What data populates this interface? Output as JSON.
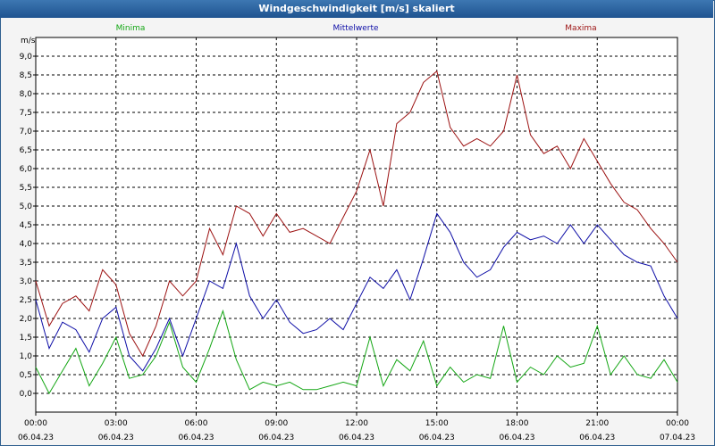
{
  "window": {
    "title": "Windgeschwindigkeit [m/s] skaliert"
  },
  "chart_data": {
    "type": "line",
    "title": "Windgeschwindigkeit [m/s] skaliert",
    "ylabel": "m/s",
    "ylim": [
      -0.5,
      9.5
    ],
    "xlim": [
      0,
      24
    ],
    "grid": true,
    "yticks": [
      "0,0",
      "0,5",
      "1,0",
      "1,5",
      "2,0",
      "2,5",
      "3,0",
      "3,5",
      "4,0",
      "4,5",
      "5,0",
      "5,5",
      "6,0",
      "6,5",
      "7,0",
      "7,5",
      "8,0",
      "8,5",
      "9,0"
    ],
    "xticks": [
      {
        "time": "00:00",
        "date": "06.04.23"
      },
      {
        "time": "03:00",
        "date": "06.04.23"
      },
      {
        "time": "06:00",
        "date": "06.04.23"
      },
      {
        "time": "09:00",
        "date": "06.04.23"
      },
      {
        "time": "12:00",
        "date": "06.04.23"
      },
      {
        "time": "15:00",
        "date": "06.04.23"
      },
      {
        "time": "18:00",
        "date": "06.04.23"
      },
      {
        "time": "21:00",
        "date": "06.04.23"
      },
      {
        "time": "00:00",
        "date": "07.04.23"
      }
    ],
    "x_hours": [
      0,
      0.5,
      1,
      1.5,
      2,
      2.5,
      3,
      3.5,
      4,
      4.5,
      5,
      5.5,
      6,
      6.5,
      7,
      7.5,
      8,
      8.5,
      9,
      9.5,
      10,
      10.5,
      11,
      11.5,
      12,
      12.5,
      13,
      13.5,
      14,
      14.5,
      15,
      15.5,
      16,
      16.5,
      17,
      17.5,
      18,
      18.5,
      19,
      19.5,
      20,
      20.5,
      21,
      21.5,
      22,
      22.5,
      23,
      23.5,
      24
    ],
    "series": [
      {
        "name": "Minima",
        "color": "#13a613",
        "values": [
          0.7,
          0.0,
          0.6,
          1.2,
          0.2,
          0.8,
          1.5,
          0.4,
          0.5,
          1.0,
          1.9,
          0.7,
          0.3,
          1.2,
          2.2,
          0.9,
          0.1,
          0.3,
          0.2,
          0.3,
          0.1,
          0.1,
          0.2,
          0.3,
          0.2,
          1.5,
          0.2,
          0.9,
          0.6,
          1.4,
          0.2,
          0.7,
          0.3,
          0.5,
          0.4,
          1.8,
          0.3,
          0.7,
          0.5,
          1.0,
          0.7,
          0.8,
          1.8,
          0.5,
          1.0,
          0.5,
          0.4,
          0.9,
          0.3
        ]
      },
      {
        "name": "Mittelwerte",
        "color": "#0d0da6",
        "values": [
          2.5,
          1.2,
          1.9,
          1.7,
          1.1,
          2.0,
          2.3,
          1.0,
          0.6,
          1.2,
          2.0,
          1.0,
          2.0,
          3.0,
          2.8,
          4.0,
          2.6,
          2.0,
          2.5,
          1.9,
          1.6,
          1.7,
          2.0,
          1.7,
          2.4,
          3.1,
          2.8,
          3.3,
          2.5,
          3.6,
          4.8,
          4.3,
          3.5,
          3.1,
          3.3,
          3.9,
          4.3,
          4.1,
          4.2,
          4.0,
          4.5,
          4.0,
          4.5,
          4.1,
          3.7,
          3.5,
          3.4,
          2.6,
          2.0
        ]
      },
      {
        "name": "Maxima",
        "color": "#9c1212",
        "values": [
          3.0,
          1.8,
          2.4,
          2.6,
          2.2,
          3.3,
          2.9,
          1.6,
          1.0,
          1.8,
          3.0,
          2.6,
          3.0,
          4.4,
          3.7,
          5.0,
          4.8,
          4.2,
          4.8,
          4.3,
          4.4,
          4.2,
          4.0,
          4.7,
          5.4,
          6.5,
          5.0,
          7.2,
          7.5,
          8.3,
          8.6,
          7.1,
          6.6,
          6.8,
          6.6,
          7.0,
          8.5,
          6.9,
          6.4,
          6.6,
          6.0,
          6.8,
          6.2,
          5.6,
          5.1,
          4.9,
          4.4,
          4.0,
          3.5
        ]
      }
    ],
    "legend_placement": "top"
  }
}
